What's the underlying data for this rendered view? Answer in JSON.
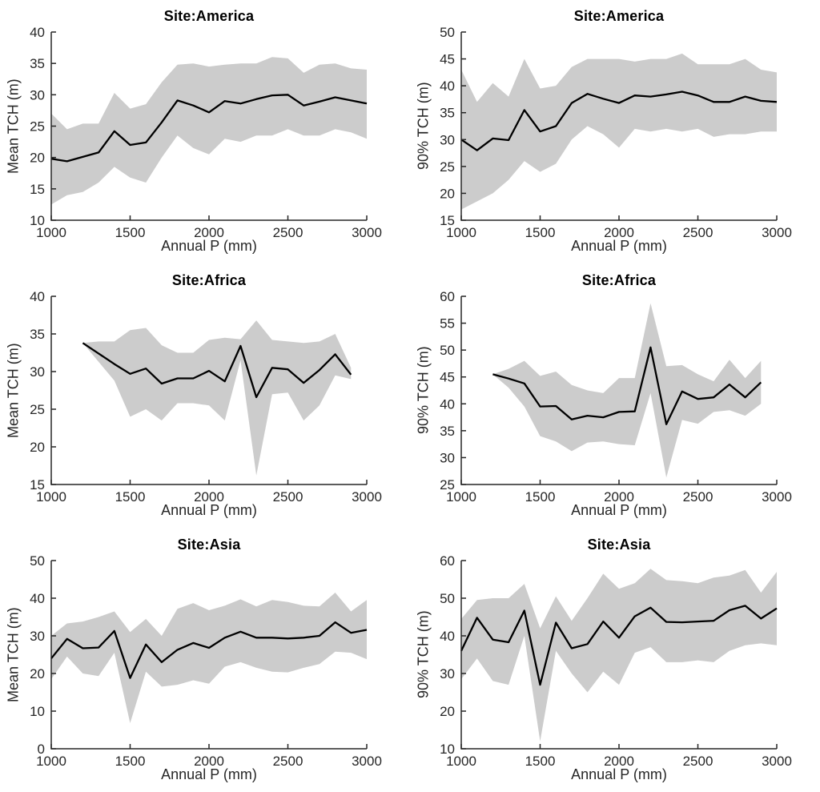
{
  "figure": {
    "background": "#ffffff",
    "rows": 3,
    "cols": 2
  },
  "colors": {
    "band": "#cccccc",
    "line": "#000000",
    "axis": "#262626",
    "tick_label": "#262626",
    "title": "#000000"
  },
  "chart_data": [
    {
      "type": "line",
      "title": "Site:America",
      "xlabel": "Annual P (mm)",
      "ylabel": "Mean TCH (m)",
      "xlim": [
        1000,
        3000
      ],
      "ylim": [
        10,
        40
      ],
      "xticks": [
        1000,
        1500,
        2000,
        2500,
        3000
      ],
      "yticks": [
        10,
        15,
        20,
        25,
        30,
        35,
        40
      ],
      "grid": false,
      "legend": "none",
      "x": [
        1000,
        1100,
        1200,
        1300,
        1400,
        1500,
        1600,
        1700,
        1800,
        1900,
        2000,
        2100,
        2200,
        2300,
        2400,
        2500,
        2600,
        2700,
        2800,
        2900,
        3000
      ],
      "series": [
        {
          "name": "mean",
          "values": [
            19.8,
            19.4,
            20.1,
            20.8,
            24.2,
            22.0,
            22.4,
            25.6,
            29.1,
            28.3,
            27.2,
            29.0,
            28.6,
            29.3,
            29.9,
            30.0,
            28.3,
            28.9,
            29.6,
            29.1,
            28.6
          ]
        },
        {
          "name": "lower_band",
          "values": [
            12.5,
            14.0,
            14.5,
            16.0,
            18.5,
            16.8,
            16.0,
            20.0,
            23.5,
            21.5,
            20.5,
            23.0,
            22.5,
            23.5,
            23.5,
            24.5,
            23.5,
            23.5,
            24.5,
            24.0,
            23.0
          ]
        },
        {
          "name": "upper_band",
          "values": [
            27.0,
            24.5,
            25.4,
            25.4,
            30.3,
            27.8,
            28.5,
            32.0,
            34.8,
            35.0,
            34.5,
            34.8,
            35.0,
            35.0,
            36.0,
            35.8,
            33.5,
            34.8,
            35.0,
            34.2,
            34.0
          ]
        }
      ]
    },
    {
      "type": "line",
      "title": "Site:America",
      "xlabel": "Annual P (mm)",
      "ylabel": "90% TCH (m)",
      "xlim": [
        1000,
        3000
      ],
      "ylim": [
        15,
        50
      ],
      "xticks": [
        1000,
        1500,
        2000,
        2500,
        3000
      ],
      "yticks": [
        15,
        20,
        25,
        30,
        35,
        40,
        45,
        50
      ],
      "grid": false,
      "legend": "none",
      "x": [
        1000,
        1100,
        1200,
        1300,
        1400,
        1500,
        1600,
        1700,
        1800,
        1900,
        2000,
        2100,
        2200,
        2300,
        2400,
        2500,
        2600,
        2700,
        2800,
        2900,
        3000
      ],
      "series": [
        {
          "name": "mean",
          "values": [
            30.0,
            28.0,
            30.2,
            29.9,
            35.5,
            31.5,
            32.5,
            36.8,
            38.5,
            37.6,
            36.8,
            38.2,
            38.0,
            38.4,
            38.9,
            38.2,
            37.0,
            37.0,
            38.0,
            37.2,
            37.0
          ]
        },
        {
          "name": "lower_band",
          "values": [
            17.0,
            18.5,
            20.0,
            22.5,
            26.0,
            24.0,
            25.5,
            30.0,
            32.5,
            31.0,
            28.5,
            32.0,
            31.5,
            32.0,
            31.5,
            32.0,
            30.5,
            31.0,
            31.0,
            31.5,
            31.5
          ]
        },
        {
          "name": "upper_band",
          "values": [
            43.0,
            37.0,
            40.5,
            38.0,
            45.0,
            39.5,
            40.0,
            43.5,
            45.0,
            45.0,
            45.0,
            44.5,
            45.0,
            45.0,
            46.0,
            44.0,
            44.0,
            44.0,
            45.0,
            43.0,
            42.5
          ]
        }
      ]
    },
    {
      "type": "line",
      "title": "Site:Africa",
      "xlabel": "Annual P (mm)",
      "ylabel": "Mean TCH (m)",
      "xlim": [
        1000,
        3000
      ],
      "ylim": [
        15,
        40
      ],
      "xticks": [
        1000,
        1500,
        2000,
        2500,
        3000
      ],
      "yticks": [
        15,
        20,
        25,
        30,
        35,
        40
      ],
      "grid": false,
      "legend": "none",
      "x": [
        1200,
        1300,
        1400,
        1500,
        1600,
        1700,
        1800,
        1900,
        2000,
        2100,
        2200,
        2300,
        2400,
        2500,
        2600,
        2700,
        2800,
        2900
      ],
      "series": [
        {
          "name": "mean",
          "values": [
            33.8,
            32.4,
            31.0,
            29.7,
            30.4,
            28.4,
            29.1,
            29.1,
            30.1,
            28.7,
            33.4,
            26.6,
            30.5,
            30.3,
            28.5,
            30.2,
            32.3,
            29.6
          ]
        },
        {
          "name": "lower_band",
          "values": [
            33.8,
            31.3,
            28.8,
            24.0,
            25.0,
            23.5,
            25.8,
            25.8,
            25.5,
            23.5,
            31.5,
            16.2,
            27.0,
            27.2,
            23.5,
            25.5,
            29.5,
            29.0
          ]
        },
        {
          "name": "upper_band",
          "values": [
            33.8,
            34.0,
            34.0,
            35.5,
            35.8,
            33.5,
            32.5,
            32.5,
            34.2,
            34.5,
            34.3,
            36.8,
            34.2,
            34.0,
            33.8,
            34.0,
            35.0,
            30.5
          ]
        }
      ]
    },
    {
      "type": "line",
      "title": "Site:Africa",
      "xlabel": "Annual P (mm)",
      "ylabel": "90% TCH (m)",
      "xlim": [
        1000,
        3000
      ],
      "ylim": [
        25,
        60
      ],
      "xticks": [
        1000,
        1500,
        2000,
        2500,
        3000
      ],
      "yticks": [
        25,
        30,
        35,
        40,
        45,
        50,
        55,
        60
      ],
      "grid": false,
      "legend": "none",
      "x": [
        1200,
        1300,
        1400,
        1500,
        1600,
        1700,
        1800,
        1900,
        2000,
        2100,
        2200,
        2300,
        2400,
        2500,
        2600,
        2700,
        2800,
        2900
      ],
      "series": [
        {
          "name": "mean",
          "values": [
            45.5,
            44.7,
            43.8,
            39.5,
            39.6,
            37.1,
            37.8,
            37.5,
            38.5,
            38.6,
            50.5,
            36.2,
            42.3,
            40.9,
            41.2,
            43.6,
            41.2,
            44.0
          ]
        },
        {
          "name": "lower_band",
          "values": [
            45.5,
            43.0,
            39.5,
            34.0,
            33.0,
            31.2,
            32.8,
            33.0,
            32.5,
            32.3,
            42.0,
            26.3,
            37.0,
            36.3,
            38.5,
            38.8,
            37.8,
            40.0
          ]
        },
        {
          "name": "upper_band",
          "values": [
            45.5,
            46.5,
            48.0,
            45.2,
            46.0,
            43.5,
            42.5,
            42.0,
            44.8,
            44.8,
            58.7,
            47.0,
            47.2,
            45.5,
            44.2,
            48.2,
            44.8,
            48.0
          ]
        }
      ]
    },
    {
      "type": "line",
      "title": "Site:Asia",
      "xlabel": "Annual P (mm)",
      "ylabel": "Mean TCH (m)",
      "xlim": [
        1000,
        3000
      ],
      "ylim": [
        0,
        50
      ],
      "xticks": [
        1000,
        1500,
        2000,
        2500,
        3000
      ],
      "yticks": [
        0,
        10,
        20,
        30,
        40,
        50
      ],
      "grid": false,
      "legend": "none",
      "x": [
        1000,
        1100,
        1200,
        1300,
        1400,
        1500,
        1600,
        1700,
        1800,
        1900,
        2000,
        2100,
        2200,
        2300,
        2400,
        2500,
        2600,
        2700,
        2800,
        2900,
        3000
      ],
      "series": [
        {
          "name": "mean",
          "values": [
            24.0,
            29.2,
            26.7,
            26.9,
            31.3,
            18.8,
            27.7,
            23.0,
            26.3,
            28.1,
            26.8,
            29.5,
            31.1,
            29.5,
            29.5,
            29.3,
            29.5,
            30.0,
            33.6,
            30.8,
            31.6
          ]
        },
        {
          "name": "lower_band",
          "values": [
            18.5,
            24.5,
            20.0,
            19.3,
            25.5,
            6.8,
            20.5,
            16.5,
            17.0,
            18.2,
            17.3,
            21.8,
            23.0,
            21.5,
            20.5,
            20.3,
            21.5,
            22.5,
            25.8,
            25.5,
            23.8
          ]
        },
        {
          "name": "upper_band",
          "values": [
            30.0,
            33.3,
            33.8,
            35.0,
            36.5,
            31.0,
            34.5,
            30.0,
            37.2,
            38.7,
            36.8,
            38.0,
            39.7,
            37.8,
            39.5,
            39.0,
            38.0,
            37.8,
            41.5,
            36.5,
            39.5
          ]
        }
      ]
    },
    {
      "type": "line",
      "title": "Site:Asia",
      "xlabel": "Annual P (mm)",
      "ylabel": "90% TCH (m)",
      "xlim": [
        1000,
        3000
      ],
      "ylim": [
        10,
        60
      ],
      "xticks": [
        1000,
        1500,
        2000,
        2500,
        3000
      ],
      "yticks": [
        10,
        20,
        30,
        40,
        50,
        60
      ],
      "grid": false,
      "legend": "none",
      "x": [
        1000,
        1100,
        1200,
        1300,
        1400,
        1500,
        1600,
        1700,
        1800,
        1900,
        2000,
        2100,
        2200,
        2300,
        2400,
        2500,
        2600,
        2700,
        2800,
        2900,
        3000
      ],
      "series": [
        {
          "name": "mean",
          "values": [
            36.0,
            44.8,
            39.0,
            38.3,
            46.7,
            27.0,
            43.5,
            36.7,
            37.8,
            43.8,
            39.5,
            45.2,
            47.5,
            43.7,
            43.6,
            43.8,
            44.0,
            46.8,
            48.0,
            44.6,
            47.3
          ]
        },
        {
          "name": "lower_band",
          "values": [
            28.5,
            34.0,
            28.0,
            27.0,
            40.0,
            12.0,
            36.0,
            30.0,
            25.0,
            30.5,
            27.0,
            35.5,
            37.0,
            33.0,
            33.0,
            33.5,
            33.0,
            36.0,
            37.5,
            38.0,
            37.5
          ]
        },
        {
          "name": "upper_band",
          "values": [
            44.5,
            49.5,
            50.0,
            50.0,
            53.8,
            42.0,
            50.5,
            44.0,
            50.0,
            56.5,
            52.5,
            54.0,
            57.8,
            54.8,
            54.5,
            54.0,
            55.5,
            56.0,
            57.5,
            51.5,
            57.0
          ]
        }
      ]
    }
  ]
}
